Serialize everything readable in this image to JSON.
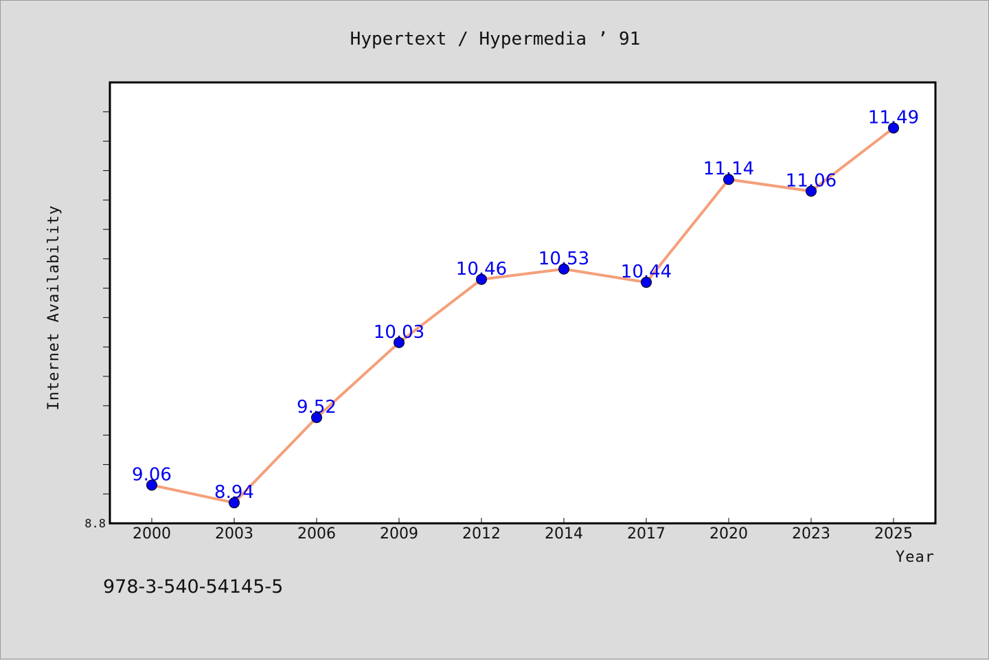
{
  "chart_data": {
    "type": "line",
    "title": "Hypertext / Hypermedia ’ 91",
    "xlabel": "Year",
    "ylabel": "Internet Availability",
    "categories": [
      "2000",
      "2003",
      "2006",
      "2009",
      "2012",
      "2014",
      "2017",
      "2020",
      "2023",
      "2025"
    ],
    "values": [
      9.06,
      8.94,
      9.52,
      10.03,
      10.46,
      10.53,
      10.44,
      11.14,
      11.06,
      11.49
    ],
    "ylim": [
      8.8,
      11.8
    ],
    "ytick_labels": [
      "8.8"
    ],
    "grid": false,
    "legend": "none",
    "line_color": "#f4a07a",
    "marker_color": "#0000ee",
    "label_color": "#0000ee"
  },
  "footer": {
    "isbn": "978-3-540-54145-5"
  }
}
